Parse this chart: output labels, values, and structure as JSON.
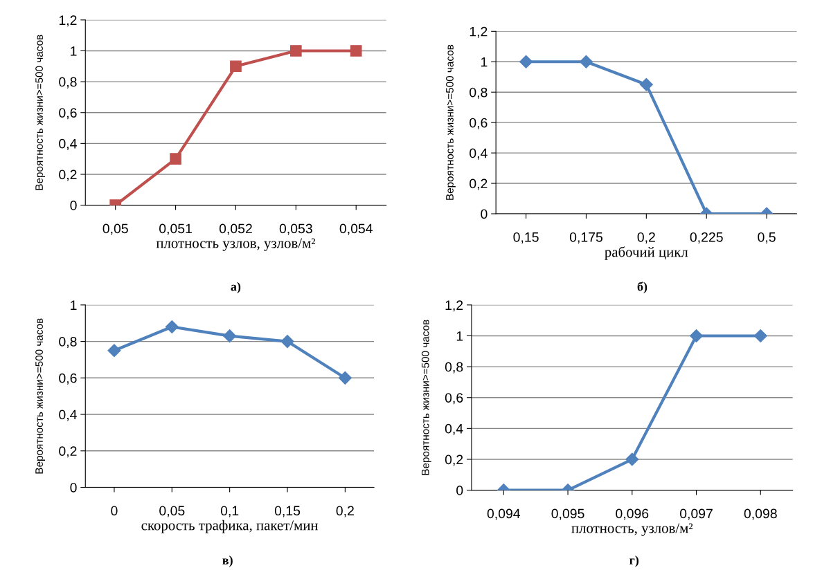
{
  "chart_data": [
    {
      "type": "line",
      "categories": [
        "0,05",
        "0,051",
        "0,052",
        "0,053",
        "0,054"
      ],
      "series": [
        {
          "color": "#c0504d",
          "values": [
            0,
            0.3,
            0.9,
            1,
            1
          ]
        }
      ],
      "marker": "square",
      "ylim": [
        0,
        1.2
      ],
      "yticks": [
        0,
        {
          "value": 0.2,
          "label": "0,2"
        },
        {
          "value": 0.4,
          "label": "0,4"
        },
        {
          "value": 0.6,
          "label": "0,6"
        },
        {
          "value": 0.8,
          "label": "0,8"
        },
        1,
        {
          "value": 1.2,
          "label": "1,2"
        }
      ],
      "grid": "y",
      "xlabel": "плотность узлов, узлов/м²",
      "ylabel": "Вероятность жизни>=500 часов",
      "annotations": [
        "а)"
      ]
    },
    {
      "type": "line",
      "categories": [
        "0,15",
        "0,175",
        "0,2",
        "0,225",
        "0,5"
      ],
      "series": [
        {
          "color": "#4f81bd",
          "values": [
            1,
            1,
            0.85,
            0,
            0
          ]
        }
      ],
      "marker": "diamond",
      "ylim": [
        0,
        1.2
      ],
      "yticks": [
        0,
        {
          "value": 0.2,
          "label": "0,2"
        },
        {
          "value": 0.4,
          "label": "0,4"
        },
        {
          "value": 0.6,
          "label": "0,6"
        },
        {
          "value": 0.8,
          "label": "0,8"
        },
        1,
        {
          "value": 1.2,
          "label": "1,2"
        }
      ],
      "grid": "y",
      "xlabel": "рабочий цикл",
      "ylabel": "Вероятность жизни>=500 часов",
      "annotations": [
        "б)"
      ]
    },
    {
      "type": "line",
      "categories": [
        "0",
        "0,05",
        "0,1",
        "0,15",
        "0,2"
      ],
      "series": [
        {
          "color": "#4f81bd",
          "values": [
            0.75,
            0.88,
            0.83,
            0.8,
            0.6
          ]
        }
      ],
      "marker": "diamond",
      "ylim": [
        0,
        1
      ],
      "yticks": [
        0,
        {
          "value": 0.2,
          "label": "0,2"
        },
        {
          "value": 0.4,
          "label": "0,4"
        },
        {
          "value": 0.6,
          "label": "0,6"
        },
        {
          "value": 0.8,
          "label": "0,8"
        },
        1
      ],
      "grid": "y",
      "xlabel": "скорость трафика, пакет/мин",
      "ylabel": "Вероятность жизни>=500 часов",
      "annotations": [
        "в)"
      ]
    },
    {
      "type": "line",
      "categories": [
        "0,094",
        "0,095",
        "0,096",
        "0,097",
        "0,098"
      ],
      "series": [
        {
          "color": "#4f81bd",
          "values": [
            0,
            0,
            0.2,
            1,
            1
          ]
        }
      ],
      "marker": "diamond",
      "ylim": [
        0,
        1.2
      ],
      "yticks": [
        0,
        {
          "value": 0.2,
          "label": "0,2"
        },
        {
          "value": 0.4,
          "label": "0,4"
        },
        {
          "value": 0.6,
          "label": "0,6"
        },
        {
          "value": 0.8,
          "label": "0,8"
        },
        1,
        {
          "value": 1.2,
          "label": "1,2"
        }
      ],
      "grid": "y",
      "xlabel": "плотность, узлов/м²",
      "ylabel": "Вероятность жизни>=500 часов",
      "annotations": [
        "г)"
      ]
    }
  ]
}
